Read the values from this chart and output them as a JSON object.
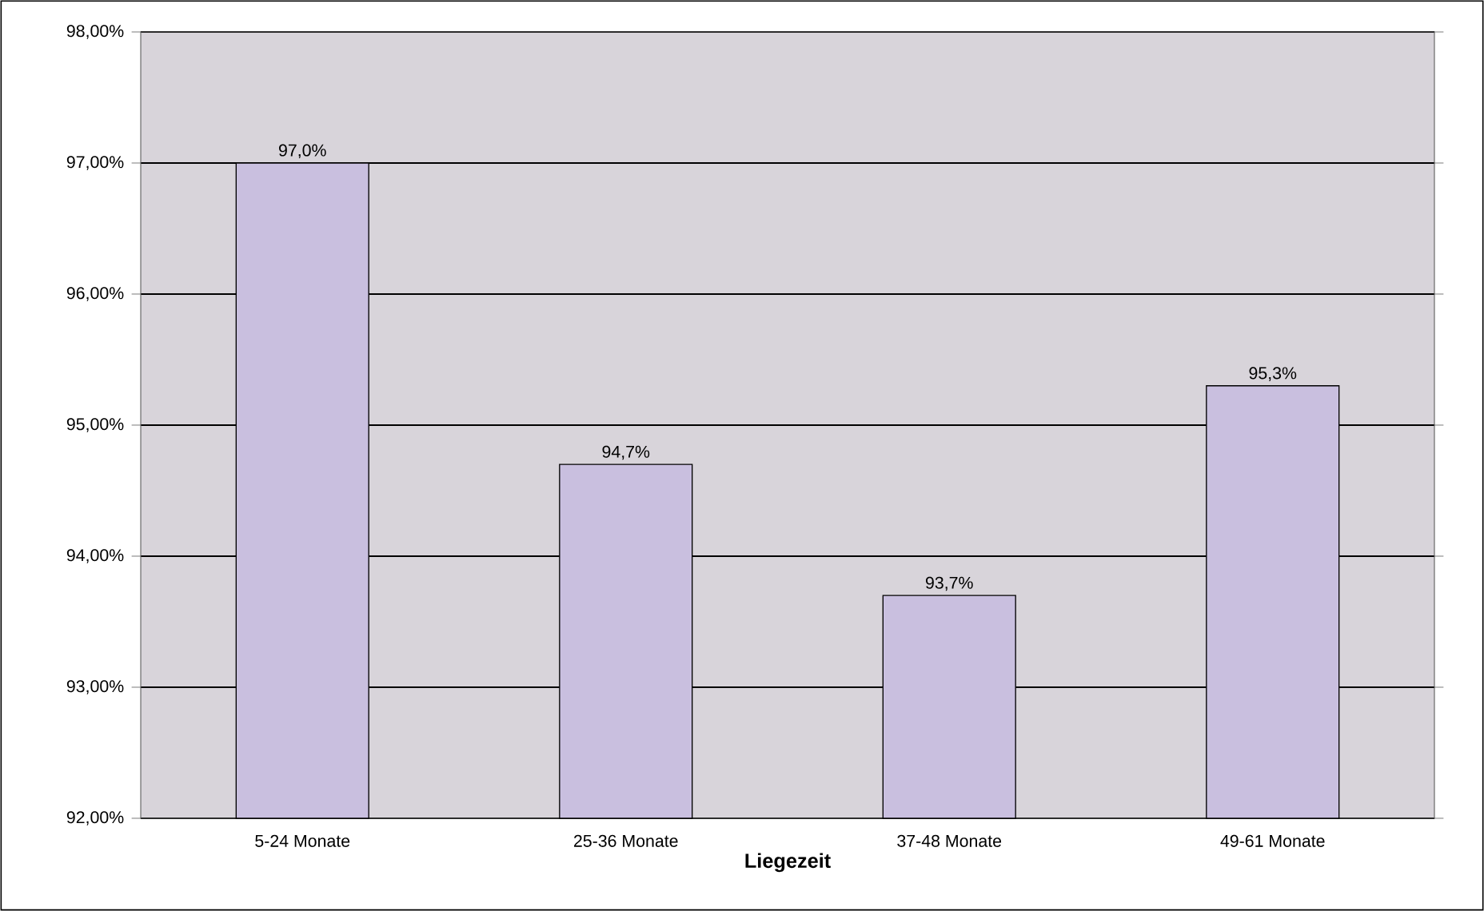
{
  "chart_data": {
    "type": "bar",
    "xlabel": "Liegezeit",
    "categories": [
      "5-24 Monate",
      "25-36 Monate",
      "37-48 Monate",
      "49-61 Monate"
    ],
    "values": [
      97.0,
      94.7,
      93.7,
      95.3
    ],
    "value_labels": [
      "97,0%",
      "94,7%",
      "93,7%",
      "95,3%"
    ],
    "color": "#c9bfdf",
    "ylim": [
      92,
      98
    ],
    "yticks": [
      {
        "value": 92,
        "label": "92,00%"
      },
      {
        "value": 93,
        "label": "93,00%"
      },
      {
        "value": 94,
        "label": "94,00%"
      },
      {
        "value": 95,
        "label": "95,00%"
      },
      {
        "value": 96,
        "label": "96,00%"
      },
      {
        "value": 97,
        "label": "97,00%"
      },
      {
        "value": 98,
        "label": "98,00%"
      }
    ],
    "grid": "y"
  }
}
